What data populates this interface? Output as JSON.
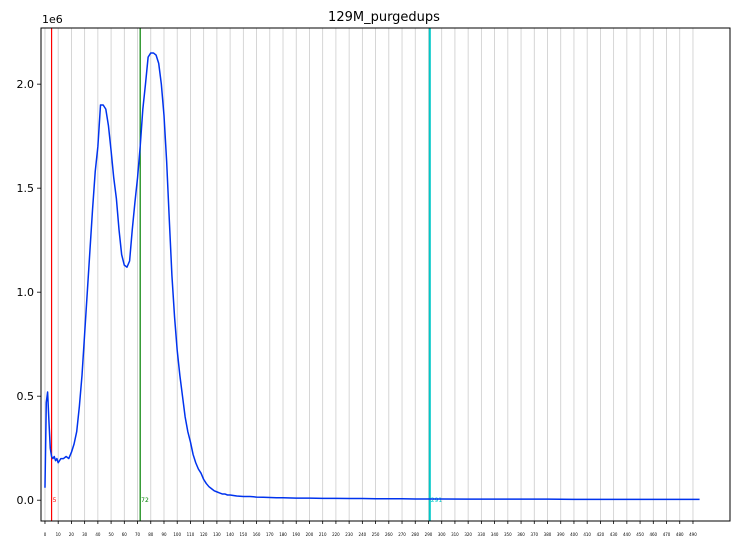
{
  "chart_data": {
    "type": "line",
    "title": "129M_purgedups",
    "y_offset_label": "1e6",
    "xlim": [
      -3,
      518
    ],
    "ylim": [
      -0.1,
      2.27
    ],
    "y_ticks": [
      0.0,
      0.5,
      1.0,
      1.5,
      2.0
    ],
    "y_tick_labels": [
      "0.0",
      "0.5",
      "1.0",
      "1.5",
      "2.0"
    ],
    "x_ticks": [
      0,
      10,
      20,
      30,
      40,
      50,
      60,
      70,
      80,
      90,
      100,
      110,
      120,
      130,
      140,
      150,
      160,
      170,
      180,
      190,
      200,
      210,
      220,
      230,
      240,
      250,
      260,
      270,
      280,
      290,
      300,
      310,
      320,
      330,
      340,
      350,
      360,
      370,
      380,
      390,
      400,
      410,
      420,
      430,
      440,
      450,
      460,
      470,
      480,
      490
    ],
    "x_tick_labels": [
      "0",
      "10",
      "20",
      "30",
      "40",
      "50",
      "60",
      "70",
      "80",
      "90",
      "100",
      "110",
      "120",
      "130",
      "140",
      "150",
      "160",
      "170",
      "180",
      "190",
      "200",
      "210",
      "220",
      "230",
      "240",
      "250",
      "260",
      "270",
      "280",
      "290",
      "300",
      "310",
      "320",
      "330",
      "340",
      "350",
      "360",
      "370",
      "380",
      "390",
      "400",
      "410",
      "420",
      "430",
      "440",
      "450",
      "460",
      "470",
      "480",
      "490"
    ],
    "grid": "vertical",
    "vertical_lines": [
      {
        "x": 5,
        "label": "5",
        "color": "#ff0000"
      },
      {
        "x": 72,
        "label": "72",
        "color": "#008000"
      },
      {
        "x": 291,
        "label": "291",
        "color": "#00c8c8"
      }
    ],
    "series": [
      {
        "color": "#0033ee",
        "x": [
          0,
          1,
          2,
          3,
          4,
          5,
          6,
          7,
          8,
          9,
          10,
          12,
          14,
          16,
          18,
          20,
          22,
          24,
          26,
          28,
          30,
          32,
          34,
          36,
          38,
          40,
          42,
          44,
          46,
          48,
          50,
          52,
          54,
          56,
          58,
          60,
          62,
          64,
          66,
          68,
          70,
          72,
          74,
          76,
          78,
          80,
          82,
          84,
          86,
          88,
          90,
          92,
          94,
          96,
          98,
          100,
          102,
          104,
          106,
          108,
          110,
          112,
          114,
          116,
          118,
          120,
          122,
          124,
          126,
          128,
          130,
          132,
          134,
          136,
          138,
          140,
          145,
          150,
          155,
          160,
          165,
          170,
          175,
          180,
          190,
          200,
          210,
          220,
          230,
          240,
          250,
          260,
          270,
          280,
          290,
          300,
          320,
          340,
          360,
          380,
          400,
          420,
          440,
          460,
          480,
          495
        ],
        "y": [
          0.06,
          0.47,
          0.52,
          0.38,
          0.25,
          0.21,
          0.2,
          0.21,
          0.19,
          0.2,
          0.18,
          0.2,
          0.2,
          0.21,
          0.2,
          0.23,
          0.27,
          0.33,
          0.45,
          0.6,
          0.8,
          1.0,
          1.2,
          1.4,
          1.58,
          1.7,
          1.9,
          1.9,
          1.88,
          1.8,
          1.68,
          1.55,
          1.45,
          1.3,
          1.18,
          1.13,
          1.12,
          1.15,
          1.3,
          1.43,
          1.55,
          1.7,
          1.88,
          2.0,
          2.13,
          2.15,
          2.15,
          2.14,
          2.1,
          2.0,
          1.85,
          1.63,
          1.35,
          1.08,
          0.88,
          0.72,
          0.6,
          0.5,
          0.4,
          0.33,
          0.28,
          0.22,
          0.18,
          0.15,
          0.13,
          0.1,
          0.08,
          0.065,
          0.055,
          0.045,
          0.04,
          0.035,
          0.03,
          0.03,
          0.025,
          0.025,
          0.02,
          0.018,
          0.018,
          0.015,
          0.014,
          0.013,
          0.012,
          0.012,
          0.01,
          0.01,
          0.009,
          0.009,
          0.008,
          0.008,
          0.007,
          0.007,
          0.007,
          0.006,
          0.006,
          0.006,
          0.005,
          0.005,
          0.005,
          0.005,
          0.004,
          0.004,
          0.004,
          0.004,
          0.004,
          0.004
        ]
      }
    ]
  }
}
